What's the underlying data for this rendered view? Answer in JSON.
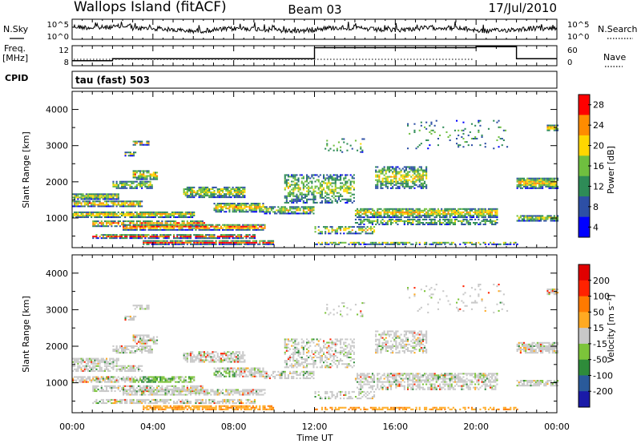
{
  "header": {
    "station": "Wallops Island (fitACF)",
    "beam": "Beam 03",
    "date": "17/Jul/2010"
  },
  "left_labels": {
    "nsky": "N.Sky",
    "freq": "Freq.",
    "freq_unit": "[MHz]",
    "cpid": "CPID"
  },
  "right_labels": {
    "nsearch": "N.Search",
    "nave": "Nave"
  },
  "cpid_text": "tau (fast) 503",
  "x_axis": {
    "ticks": [
      "00:00",
      "04:00",
      "08:00",
      "12:00",
      "16:00",
      "20:00",
      "00:00"
    ],
    "label": "Time UT"
  },
  "chart_data": [
    {
      "type": "line",
      "name": "noise",
      "ylabels_left": [
        "10^5",
        "10^0"
      ],
      "ylabels_right": [
        "10^5",
        "10^0"
      ],
      "series": [
        {
          "name": "N.Sky",
          "style": "solid"
        },
        {
          "name": "N.Search",
          "style": "dotted"
        }
      ]
    },
    {
      "type": "line",
      "name": "frequency",
      "ylabels_left": [
        "12",
        "8"
      ],
      "ylabels_right": [
        "60",
        "0"
      ],
      "series": [
        {
          "name": "Freq.",
          "style": "solid",
          "x": [
            0,
            2,
            12,
            20,
            22,
            24
          ],
          "values": [
            9.0,
            9.4,
            11.6,
            11.8,
            9.4,
            9.4
          ]
        },
        {
          "name": "Nave",
          "style": "dotted"
        }
      ]
    },
    {
      "type": "heatmap",
      "name": "power",
      "ylabel": "Slant Range [km]",
      "yticks": [
        1000,
        2000,
        3000,
        4000
      ],
      "ylim": [
        180,
        4500
      ],
      "xlim": [
        0,
        24
      ],
      "colorbar": {
        "label": "Power [dB]",
        "ticks": [
          "4",
          "8",
          "12",
          "16",
          "20",
          "24",
          "28"
        ],
        "colors": [
          "#0000ff",
          "#2d4fa5",
          "#2e8b57",
          "#6fbf3f",
          "#ffd700",
          "#ff8c00",
          "#ff0000"
        ]
      }
    },
    {
      "type": "heatmap",
      "name": "velocity",
      "ylabel": "Slant Range [km]",
      "yticks": [
        1000,
        2000,
        3000,
        4000
      ],
      "ylim": [
        180,
        4500
      ],
      "xlim": [
        0,
        24
      ],
      "colorbar": {
        "label": "Velocity [m s⁻¹]",
        "ticks": [
          "200",
          "100",
          "50",
          "15",
          "-15",
          "-50",
          "-100",
          "-200"
        ],
        "colors": [
          "#1a1aa8",
          "#2a5a9a",
          "#2e8b3a",
          "#7cc43a",
          "#c8c8c8",
          "#ffaa22",
          "#ff7a00",
          "#ff2200",
          "#e00000"
        ]
      }
    }
  ]
}
